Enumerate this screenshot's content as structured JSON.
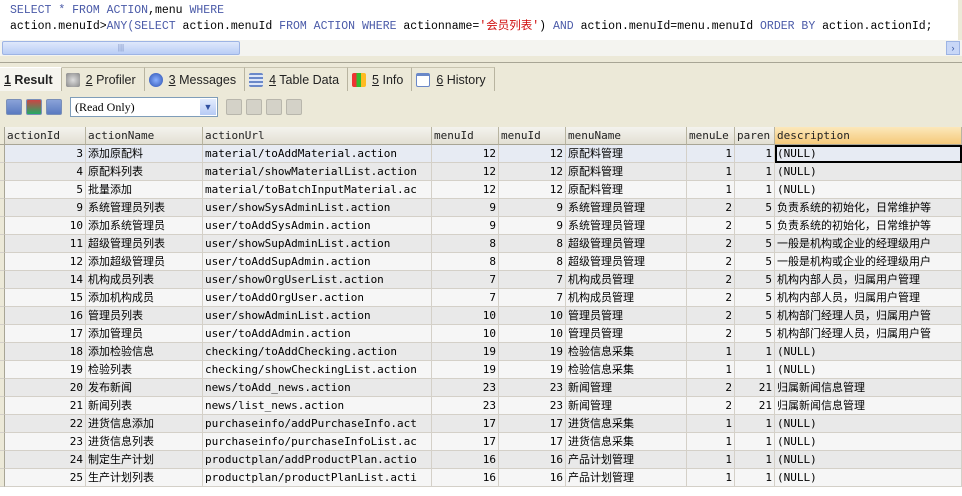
{
  "query": {
    "line1_kw1": "SELECT",
    "line1_star": " * ",
    "line1_kw2": "FROM",
    "line1_t1": " ",
    "line1_kw3": "ACTION",
    "line1_t2": ",menu ",
    "line1_kw4": "WHERE",
    "line2_a": "action.menuId>",
    "line2_kw1": "ANY(SELECT",
    "line2_b": " action.menuId ",
    "line2_kw2": "FROM ACTION WHERE",
    "line2_c": " actionname=",
    "line2_str": "'会员列表'",
    "line2_d": ") ",
    "line2_kw3": "AND",
    "line2_e": " action.menuId=menu.menuId ",
    "line2_kw4": "ORDER BY",
    "line2_f": " action.actionId;"
  },
  "tabs": [
    {
      "num": "1",
      "label": " Result",
      "icon": "result"
    },
    {
      "num": "2",
      "label": " Profiler",
      "icon": "profiler-icon"
    },
    {
      "num": "3",
      "label": " Messages",
      "icon": "info-icon"
    },
    {
      "num": "4",
      "label": " Table Data",
      "icon": "table-icon"
    },
    {
      "num": "5",
      "label": " Info",
      "icon": "info-chart-icon"
    },
    {
      "num": "6",
      "label": " History",
      "icon": "calendar-icon"
    }
  ],
  "toolbar": {
    "mode": "(Read Only)"
  },
  "grid": {
    "columns": [
      "actionId",
      "actionName",
      "actionUrl",
      "menuId",
      "menuId",
      "menuName",
      "menuLe",
      "paren",
      "description"
    ],
    "rows": [
      [
        "3",
        "添加原配料",
        "material/toAddMaterial.action",
        "12",
        "12",
        "原配料管理",
        "1",
        "1",
        "(NULL)"
      ],
      [
        "4",
        "原配料列表",
        "material/showMaterialList.action",
        "12",
        "12",
        "原配料管理",
        "1",
        "1",
        "(NULL)"
      ],
      [
        "5",
        "批量添加",
        "material/toBatchInputMaterial.ac",
        "12",
        "12",
        "原配料管理",
        "1",
        "1",
        "(NULL)"
      ],
      [
        "9",
        "系统管理员列表",
        "user/showSysAdminList.action",
        "9",
        "9",
        "系统管理员管理",
        "2",
        "5",
        "负责系统的初始化，日常维护等"
      ],
      [
        "10",
        "添加系统管理员",
        "user/toAddSysAdmin.action",
        "9",
        "9",
        "系统管理员管理",
        "2",
        "5",
        "负责系统的初始化，日常维护等"
      ],
      [
        "11",
        "超级管理员列表",
        "user/showSupAdminList.action",
        "8",
        "8",
        "超级管理员管理",
        "2",
        "5",
        "一般是机构或企业的经理级用户"
      ],
      [
        "12",
        "添加超级管理员",
        "user/toAddSupAdmin.action",
        "8",
        "8",
        "超级管理员管理",
        "2",
        "5",
        "一般是机构或企业的经理级用户"
      ],
      [
        "14",
        "机构成员列表",
        "user/showOrgUserList.action",
        "7",
        "7",
        "机构成员管理",
        "2",
        "5",
        "机构内部人员，归属用户管理"
      ],
      [
        "15",
        "添加机构成员",
        "user/toAddOrgUser.action",
        "7",
        "7",
        "机构成员管理",
        "2",
        "5",
        "机构内部人员，归属用户管理"
      ],
      [
        "16",
        "管理员列表",
        "user/showAdminList.action",
        "10",
        "10",
        "管理员管理",
        "2",
        "5",
        "机构部门经理人员，归属用户管"
      ],
      [
        "17",
        "添加管理员",
        "user/toAddAdmin.action",
        "10",
        "10",
        "管理员管理",
        "2",
        "5",
        "机构部门经理人员，归属用户管"
      ],
      [
        "18",
        "添加检验信息",
        "checking/toAddChecking.action",
        "19",
        "19",
        "检验信息采集",
        "1",
        "1",
        "(NULL)"
      ],
      [
        "19",
        "检验列表",
        "checking/showCheckingList.action",
        "19",
        "19",
        "检验信息采集",
        "1",
        "1",
        "(NULL)"
      ],
      [
        "20",
        "发布新闻",
        "news/toAdd_news.action",
        "23",
        "23",
        "新闻管理",
        "2",
        "21",
        "归属新闻信息管理"
      ],
      [
        "21",
        "新闻列表",
        "news/list_news.action",
        "23",
        "23",
        "新闻管理",
        "2",
        "21",
        "归属新闻信息管理"
      ],
      [
        "22",
        "进货信息添加",
        "purchaseinfo/addPurchaseInfo.act",
        "17",
        "17",
        "进货信息采集",
        "1",
        "1",
        "(NULL)"
      ],
      [
        "23",
        "进货信息列表",
        "purchaseinfo/purchaseInfoList.ac",
        "17",
        "17",
        "进货信息采集",
        "1",
        "1",
        "(NULL)"
      ],
      [
        "24",
        "制定生产计划",
        "productplan/addProductPlan.actio",
        "16",
        "16",
        "产品计划管理",
        "1",
        "1",
        "(NULL)"
      ],
      [
        "25",
        "生产计划列表",
        "productplan/productPlanList.acti",
        "16",
        "16",
        "产品计划管理",
        "1",
        "1",
        "(NULL)"
      ]
    ]
  }
}
